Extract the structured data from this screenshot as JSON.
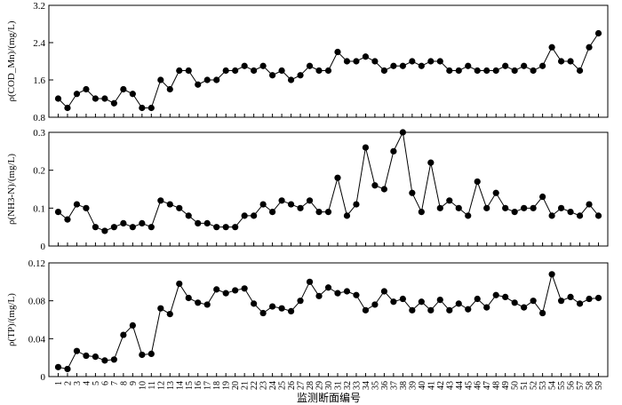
{
  "chart_data": [
    {
      "type": "line",
      "ylabel": "ρ(COD_Mn)/(mg/L)",
      "ylim": [
        0.8,
        3.2
      ],
      "yticks": [
        "0.8",
        "1.6",
        "2.4",
        "3.2"
      ],
      "values": [
        1.2,
        1.0,
        1.3,
        1.4,
        1.2,
        1.2,
        1.1,
        1.4,
        1.3,
        1.0,
        1.0,
        1.6,
        1.4,
        1.8,
        1.8,
        1.5,
        1.6,
        1.6,
        1.8,
        1.8,
        1.9,
        1.8,
        1.9,
        1.7,
        1.8,
        1.6,
        1.7,
        1.9,
        1.8,
        1.8,
        2.2,
        2.0,
        2.0,
        2.1,
        2.0,
        1.8,
        1.9,
        1.9,
        2.0,
        1.9,
        2.0,
        2.0,
        1.8,
        1.8,
        1.9,
        1.8,
        1.8,
        1.8,
        1.9,
        1.8,
        1.9,
        1.8,
        1.9,
        2.3,
        2.0,
        2.0,
        1.8,
        2.3,
        2.6
      ]
    },
    {
      "type": "line",
      "ylabel": "ρ(NH3-N)/(mg/L)",
      "ylim": [
        0,
        0.3
      ],
      "yticks": [
        "0",
        "0.1",
        "0.2",
        "0.3"
      ],
      "values": [
        0.09,
        0.07,
        0.11,
        0.1,
        0.05,
        0.04,
        0.05,
        0.06,
        0.05,
        0.06,
        0.05,
        0.12,
        0.11,
        0.1,
        0.08,
        0.06,
        0.06,
        0.05,
        0.05,
        0.05,
        0.08,
        0.08,
        0.11,
        0.09,
        0.12,
        0.11,
        0.1,
        0.12,
        0.09,
        0.09,
        0.18,
        0.08,
        0.11,
        0.26,
        0.16,
        0.15,
        0.25,
        0.3,
        0.14,
        0.09,
        0.22,
        0.1,
        0.12,
        0.1,
        0.08,
        0.17,
        0.1,
        0.14,
        0.1,
        0.09,
        0.1,
        0.1,
        0.13,
        0.08,
        0.1,
        0.09,
        0.08,
        0.11,
        0.08
      ]
    },
    {
      "type": "line",
      "ylabel": "ρ(TP)/(mg/L)",
      "ylim": [
        0,
        0.12
      ],
      "yticks": [
        "0",
        "0.04",
        "0.08",
        "0.12"
      ],
      "values": [
        0.01,
        0.008,
        0.027,
        0.022,
        0.021,
        0.017,
        0.018,
        0.044,
        0.054,
        0.023,
        0.024,
        0.072,
        0.066,
        0.098,
        0.083,
        0.078,
        0.076,
        0.092,
        0.088,
        0.091,
        0.093,
        0.077,
        0.067,
        0.074,
        0.072,
        0.069,
        0.08,
        0.1,
        0.085,
        0.094,
        0.088,
        0.09,
        0.086,
        0.07,
        0.076,
        0.09,
        0.079,
        0.082,
        0.07,
        0.079,
        0.07,
        0.081,
        0.07,
        0.077,
        0.071,
        0.082,
        0.073,
        0.086,
        0.084,
        0.078,
        0.073,
        0.08,
        0.067,
        0.108,
        0.08,
        0.084,
        0.077,
        0.082,
        0.083
      ]
    }
  ],
  "xlabel": "监测断面编号",
  "x_ticks": [
    "1",
    "2",
    "3",
    "4",
    "5",
    "6",
    "7",
    "8",
    "9",
    "10",
    "11",
    "12",
    "13",
    "14",
    "15",
    "16",
    "17",
    "18",
    "19",
    "20",
    "21",
    "22",
    "23",
    "24",
    "25",
    "26",
    "27",
    "28",
    "29",
    "30",
    "31",
    "32",
    "33",
    "34",
    "35",
    "36",
    "37",
    "38",
    "39",
    "40",
    "41",
    "42",
    "43",
    "44",
    "45",
    "46",
    "47",
    "48",
    "49",
    "50",
    "51",
    "52",
    "53",
    "54",
    "55",
    "56",
    "57",
    "58",
    "59"
  ],
  "colors": {
    "line": "#000000",
    "marker": "#000000"
  }
}
